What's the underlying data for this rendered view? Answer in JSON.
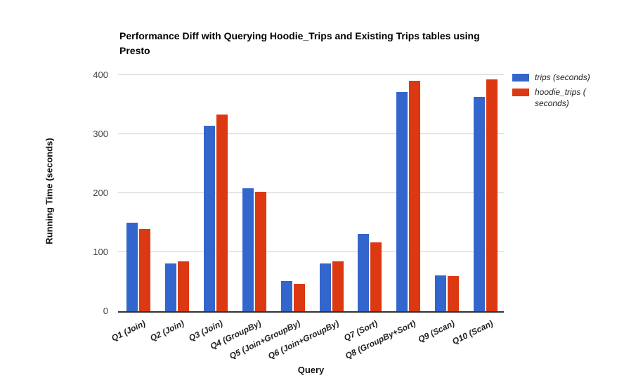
{
  "chart_data": {
    "type": "bar",
    "title": "Performance Diff with Querying Hoodie_Trips and Existing Trips tables using Presto",
    "xlabel": "Query",
    "ylabel": "Running Time (seconds)",
    "ylim": [
      0,
      400
    ],
    "yticks": [
      0,
      100,
      200,
      300,
      400
    ],
    "grid": true,
    "legend_position": "right-top",
    "categories": [
      "Q1 (Join)",
      "Q2 (Join)",
      "Q3 (Join)",
      "Q4 (GroupBy)",
      "Q5 (Join+GroupBy)",
      "Q6 (Join+GroupBy)",
      "Q7 (Sort)",
      "Q8 (GroupBy+Sort)",
      "Q9 (Scan)",
      "Q10 (Scan)"
    ],
    "series": [
      {
        "name": "trips (seconds)",
        "color": "#3366cc",
        "values": [
          150,
          81,
          314,
          208,
          51,
          81,
          131,
          371,
          61,
          363
        ]
      },
      {
        "name": "hoodie_trips ( seconds)",
        "color": "#dc3912",
        "values": [
          139,
          84,
          333,
          202,
          46,
          85,
          117,
          390,
          60,
          393
        ]
      }
    ]
  }
}
